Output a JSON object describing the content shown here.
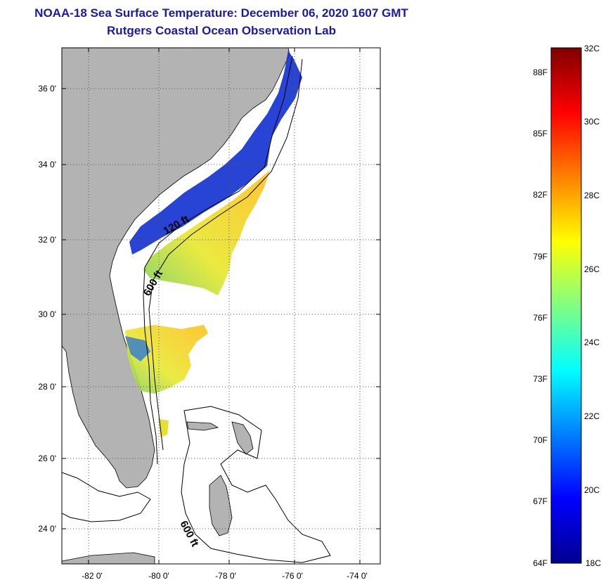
{
  "header": {
    "title": "NOAA-18 Sea Surface Temperature:  December 06, 2020 1607 GMT",
    "subtitle": "Rutgers Coastal Ocean Observation Lab"
  },
  "map": {
    "lat_ticks": [
      "36 0'",
      "34 0'",
      "32 0'",
      "30 0'",
      "28 0'",
      "26 0'",
      "24 0'"
    ],
    "lon_ticks": [
      "-82 0'",
      "-80 0'",
      "-78 0'",
      "-76 0'",
      "-74 0'"
    ],
    "contour_labels": [
      "120 ft",
      "600 ft",
      "600 ft"
    ],
    "colors": {
      "land": "#b3b3b3",
      "water": "#ffffff",
      "grid": "#555555"
    }
  },
  "colorbar": {
    "celsius_labels": [
      "32C",
      "30C",
      "28C",
      "26C",
      "24C",
      "22C",
      "20C",
      "18C"
    ],
    "fahrenheit_labels": [
      "88F",
      "85F",
      "82F",
      "79F",
      "76F",
      "73F",
      "70F",
      "67F",
      "64F"
    ],
    "colormap": [
      "#00008f",
      "#0000ff",
      "#0080ff",
      "#00ffff",
      "#80ff80",
      "#ffff00",
      "#ff8000",
      "#ff0000",
      "#800000"
    ]
  }
}
